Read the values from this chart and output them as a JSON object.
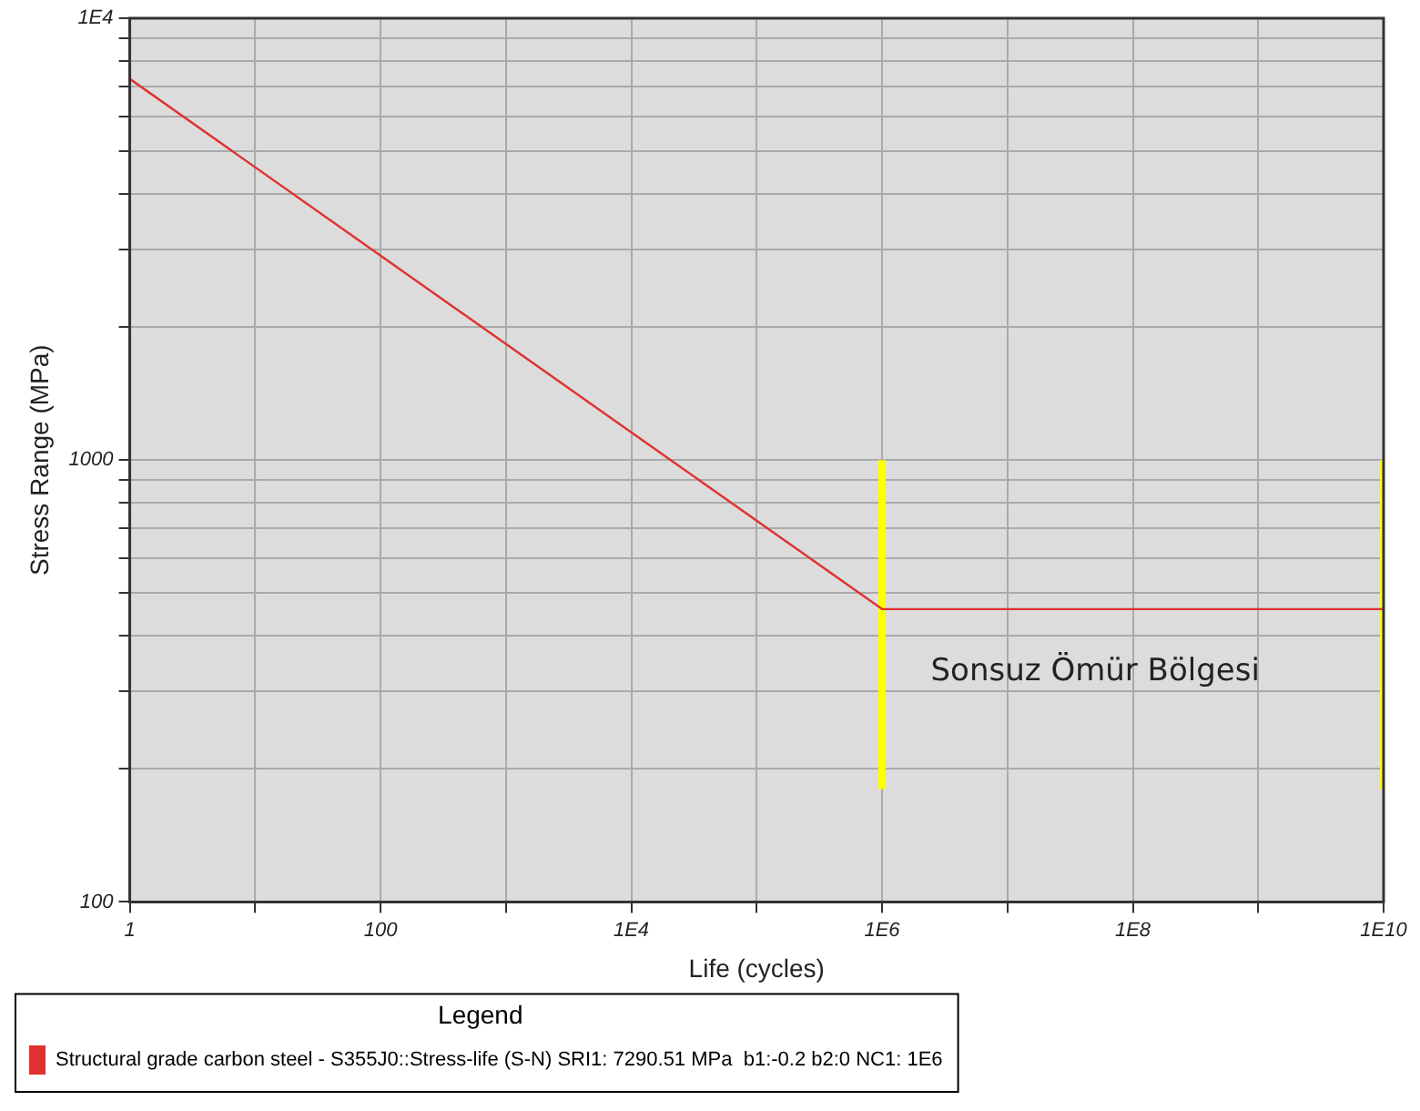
{
  "chart_data": {
    "type": "line",
    "xlabel": "Life (cycles)",
    "ylabel": "Stress Range (MPa)",
    "legend_title": "Legend",
    "log": "xy",
    "grid": true,
    "legend": "bottom",
    "marker": "none",
    "line_style": "solid",
    "xlim": [
      1,
      10000000000
    ],
    "ylim": [
      100,
      10000
    ],
    "xticks": [
      {
        "value": 1,
        "label": "1"
      },
      {
        "value": 10,
        "label": null
      },
      {
        "value": 100,
        "label": "100"
      },
      {
        "value": 1000,
        "label": null
      },
      {
        "value": 10000,
        "label": "1E4"
      },
      {
        "value": 100000,
        "label": null
      },
      {
        "value": 1000000,
        "label": "1E6"
      },
      {
        "value": 10000000,
        "label": null
      },
      {
        "value": 100000000,
        "label": "1E8"
      },
      {
        "value": 1000000000,
        "label": null
      },
      {
        "value": 10000000000,
        "label": "1E10"
      }
    ],
    "yticks": [
      100,
      {
        "value": 200,
        "label": null
      },
      {
        "value": 300,
        "label": null
      },
      {
        "value": 400,
        "label": null
      },
      {
        "value": 500,
        "label": null
      },
      {
        "value": 600,
        "label": null
      },
      {
        "value": 700,
        "label": null
      },
      {
        "value": 800,
        "label": null
      },
      {
        "value": 900,
        "label": null
      },
      1000,
      {
        "value": 2000,
        "label": null
      },
      {
        "value": 3000,
        "label": null
      },
      {
        "value": 4000,
        "label": null
      },
      {
        "value": 5000,
        "label": null
      },
      {
        "value": 6000,
        "label": null
      },
      {
        "value": 7000,
        "label": null
      },
      {
        "value": 8000,
        "label": null
      },
      {
        "value": 9000,
        "label": null
      },
      {
        "value": 10000,
        "label": "1E4"
      }
    ],
    "series": [
      {
        "name": "Structural grade carbon steel - S355J0::Stress-life (S-N) SRI1: 7290.51 MPa  b1:-0.2 b2:0 NC1: 1E6",
        "color": "#e03030",
        "x": [
          1,
          1000000,
          10000000000
        ],
        "values": [
          7290.51,
          460,
          460
        ]
      },
      {
        "color": "#ffff00",
        "x": [
          1000000,
          1000000
        ],
        "values": [
          180,
          1000
        ]
      },
      {
        "color": "#ffff00",
        "x": [
          10000000000,
          10000000000
        ],
        "values": [
          180,
          1000
        ]
      }
    ],
    "annotations": [
      "Sonsuz Ömür Bölgesi"
    ]
  }
}
